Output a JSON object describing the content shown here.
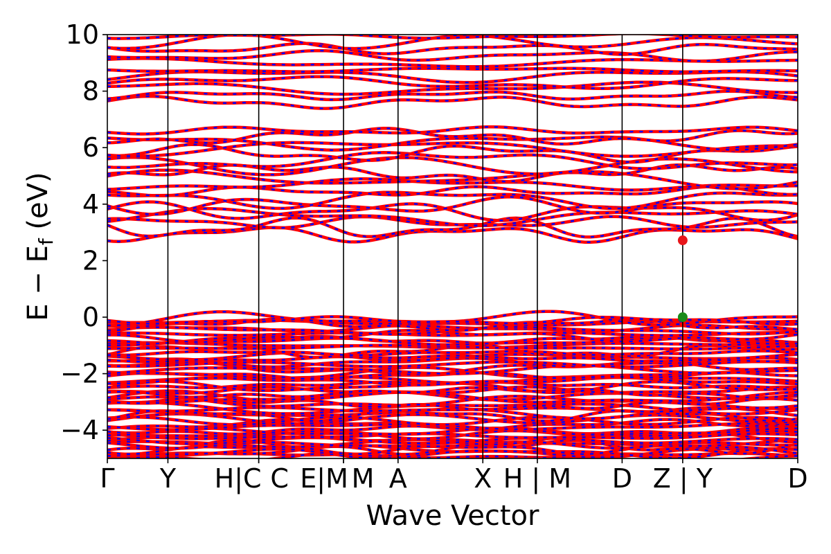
{
  "chart_data": {
    "type": "line",
    "xlabel": "Wave Vector",
    "ylabel": "E − E",
    "ylabel_sub": "f",
    "ylabel_unit": " (eV)",
    "ylim": [
      -5,
      10
    ],
    "yticks": [
      {
        "value": -4,
        "label": "−4"
      },
      {
        "value": -2,
        "label": "−2"
      },
      {
        "value": 0,
        "label": "0"
      },
      {
        "value": 2,
        "label": "2"
      },
      {
        "value": 4,
        "label": "4"
      },
      {
        "value": 6,
        "label": "6"
      },
      {
        "value": 8,
        "label": "8"
      },
      {
        "value": 10,
        "label": "10"
      }
    ],
    "xlim": [
      0,
      11.4
    ],
    "kpoints": [
      {
        "x": 0.0,
        "label": "Γ"
      },
      {
        "x": 1.0,
        "label": "Y"
      },
      {
        "x": 2.5,
        "label": "H|C"
      },
      {
        "x": 2.5,
        "label": "C"
      },
      {
        "x": 3.9,
        "label": "E|M"
      },
      {
        "x": 3.9,
        "label": "M"
      },
      {
        "x": 4.8,
        "label": "A"
      },
      {
        "x": 6.2,
        "label": "X"
      },
      {
        "x": 7.1,
        "label": "H | M"
      },
      {
        "x": 8.5,
        "label": "D"
      },
      {
        "x": 9.5,
        "label": "Z | Y"
      },
      {
        "x": 11.4,
        "label": "D"
      }
    ],
    "series": [
      {
        "color": "#ff0000"
      },
      {
        "color": "#0000ff"
      }
    ],
    "markers": [
      {
        "name": "CBM",
        "x": 9.5,
        "y": 2.72,
        "color": "#e8161b"
      },
      {
        "name": "VBM",
        "x": 9.5,
        "y": 0.0,
        "color": "#1a8a1a"
      }
    ],
    "band_sets": {
      "valence_bottoms": [
        -4.9,
        -4.75,
        -4.6,
        -4.45,
        -4.3,
        -4.15,
        -4.0,
        -3.8,
        -3.6,
        -3.4,
        -3.2,
        -3.0,
        -2.8,
        -2.6,
        -2.4,
        -2.2,
        -2.0,
        -1.8,
        -1.6,
        -1.4,
        -1.2,
        -1.0,
        -0.8,
        -0.6,
        -0.4,
        -0.2,
        -0.05
      ],
      "conduction_lows": [
        2.95,
        3.15,
        3.35,
        3.55,
        3.75,
        3.95,
        4.2,
        4.45,
        4.7,
        4.9,
        5.1,
        5.35,
        5.55,
        5.8,
        6.0,
        6.2,
        6.4,
        6.6
      ],
      "conduction_highs": [
        7.6,
        7.85,
        8.1,
        8.3,
        8.55,
        8.75,
        9.0,
        9.25,
        9.5,
        9.75,
        9.95
      ]
    }
  }
}
